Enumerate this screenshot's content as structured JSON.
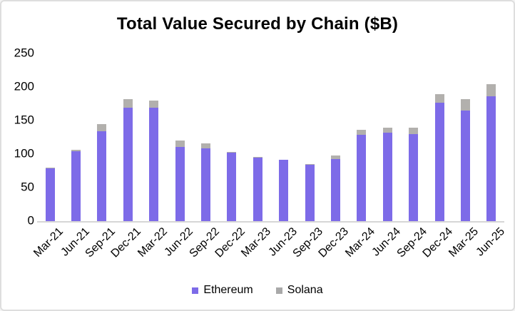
{
  "chart_data": {
    "type": "bar",
    "stacked": true,
    "title": "Total Value Secured by Chain ($B)",
    "categories": [
      "Mar-21",
      "Jun-21",
      "Sep-21",
      "Dec-21",
      "Mar-22",
      "Jun-22",
      "Sep-22",
      "Dec-22",
      "Mar-23",
      "Jun-23",
      "Sep-23",
      "Dec-23",
      "Mar-24",
      "Jun-24",
      "Sep-24",
      "Dec-24",
      "Mar-25",
      "Jun-25"
    ],
    "series": [
      {
        "name": "Ethereum",
        "color": "#7d6be8",
        "values": [
          79,
          104,
          134,
          169,
          169,
          111,
          108,
          102,
          95,
          91,
          84,
          93,
          129,
          132,
          130,
          177,
          165,
          186
        ]
      },
      {
        "name": "Solana",
        "color": "#b2b0ad",
        "values": [
          1,
          2.5,
          11,
          13,
          11,
          9,
          8,
          1.5,
          1,
          1,
          1.5,
          5,
          7,
          7,
          9,
          12,
          17,
          18
        ]
      }
    ],
    "xlabel": "",
    "ylabel": "",
    "ylim": [
      0,
      250
    ],
    "yticks": [
      0,
      50,
      100,
      150,
      200,
      250
    ],
    "grid": false,
    "legend_position": "bottom",
    "legend_swatch_colors": {
      "ethereum": "#7d6be8",
      "solana": "#a9a9a9"
    },
    "axis_line_color": "#d6d6d6"
  }
}
